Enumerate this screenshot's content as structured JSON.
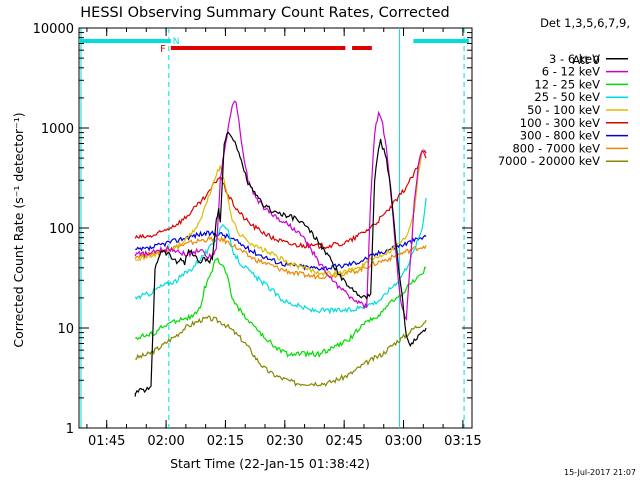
{
  "chart_data": {
    "type": "line",
    "title": "HESSI Observing Summary Count Rates, Corrected",
    "xlabel": "Start Time (22-Jan-15 01:38:42)",
    "ylabel": "Corrected Count Rate (s⁻¹ detector⁻¹)",
    "y_scale": "log",
    "ylim": [
      1,
      10000
    ],
    "x_unit": "minutes after 01:38:42",
    "xlim": [
      -0.7,
      98.6
    ],
    "x_ticks": [
      {
        "label": "01:45",
        "value": 6.3
      },
      {
        "label": "02:00",
        "value": 21.3
      },
      {
        "label": "02:15",
        "value": 36.3
      },
      {
        "label": "02:30",
        "value": 51.3
      },
      {
        "label": "02:45",
        "value": 66.3
      },
      {
        "label": "03:00",
        "value": 81.3
      },
      {
        "label": "03:15",
        "value": 96.3
      }
    ],
    "y_ticks": [
      {
        "label": "1",
        "value": 1
      },
      {
        "label": "10",
        "value": 10
      },
      {
        "label": "100",
        "value": 100
      },
      {
        "label": "1000",
        "value": 1000
      },
      {
        "label": "10000",
        "value": 10000
      }
    ],
    "legend_header": [
      "Det 1,3,5,6,7,9,",
      "Att 0"
    ],
    "legend_position": "right",
    "series": [
      {
        "name": "3 - 6 keV",
        "color": "#000000",
        "x": [
          13.5,
          13.6,
          17.5,
          18.5,
          20,
          22,
          24,
          25,
          26,
          27,
          28,
          29,
          30,
          31,
          32,
          33,
          34,
          34.6,
          35,
          36,
          37,
          38,
          39,
          40,
          41,
          42,
          44,
          46,
          48,
          50,
          52,
          54,
          56,
          58,
          60,
          62,
          64,
          66,
          68,
          70,
          72,
          73,
          74,
          75,
          75.5,
          76,
          77,
          78,
          79,
          80,
          81,
          82,
          83,
          84,
          85,
          86,
          87
        ],
        "y": [
          2,
          2.3,
          2.5,
          40,
          60,
          55,
          45,
          50,
          45,
          60,
          55,
          50,
          45,
          50,
          45,
          50,
          120,
          160,
          110,
          700,
          950,
          800,
          650,
          500,
          380,
          280,
          210,
          170,
          150,
          140,
          130,
          125,
          110,
          90,
          70,
          55,
          40,
          30,
          25,
          22,
          20,
          22,
          300,
          650,
          750,
          650,
          500,
          250,
          100,
          40,
          20,
          8,
          7,
          7.5,
          8.5,
          9,
          10
        ]
      },
      {
        "name": "6 - 12 keV",
        "color": "#cc00cc",
        "x": [
          13.5,
          17.5,
          18.5,
          20,
          22,
          24,
          26,
          28,
          29,
          30,
          31,
          32,
          33,
          34,
          34.6,
          35,
          36,
          37,
          38,
          39,
          40,
          41,
          42,
          44,
          46,
          48,
          50,
          52,
          54,
          56,
          58,
          60,
          62,
          64,
          66,
          68,
          70,
          72,
          73,
          74,
          75,
          76,
          77,
          78,
          79,
          80,
          81,
          82,
          83,
          84,
          85,
          86,
          87
        ],
        "y": [
          55,
          55,
          58,
          60,
          62,
          60,
          55,
          55,
          60,
          60,
          55,
          50,
          55,
          60,
          160,
          300,
          600,
          1000,
          1600,
          1900,
          900,
          500,
          300,
          200,
          160,
          140,
          120,
          110,
          95,
          80,
          60,
          45,
          35,
          28,
          24,
          20,
          18,
          16,
          200,
          900,
          1400,
          1100,
          600,
          250,
          90,
          30,
          15,
          12,
          45,
          180,
          400,
          600,
          560
        ]
      },
      {
        "name": "12 - 25 keV",
        "color": "#00dd00",
        "x": [
          13.5,
          17,
          18.5,
          20,
          22,
          24,
          26,
          28,
          29,
          30,
          31,
          32,
          33,
          34,
          35,
          36,
          37,
          38,
          40,
          42,
          44,
          46,
          48,
          50,
          52,
          54,
          56,
          58,
          60,
          62,
          64,
          66,
          68,
          70,
          72,
          74,
          76,
          78,
          80,
          82,
          84,
          86,
          87
        ],
        "y": [
          8,
          8.5,
          9,
          10,
          11,
          12,
          12.5,
          13,
          14,
          16,
          25,
          30,
          38,
          50,
          45,
          40,
          30,
          20,
          15,
          12,
          10,
          8,
          7,
          6,
          5.5,
          5.5,
          5.5,
          5.5,
          5.5,
          6,
          6.5,
          7,
          8,
          10,
          12,
          12,
          15,
          18,
          20,
          25,
          30,
          35,
          40
        ]
      },
      {
        "name": "25 - 50 keV",
        "color": "#00dddd",
        "x": [
          13.5,
          17,
          18.5,
          20,
          22,
          24,
          26,
          28,
          30,
          32,
          34,
          35,
          36,
          37,
          38,
          40,
          42,
          44,
          46,
          48,
          50,
          52,
          54,
          56,
          58,
          60,
          62,
          64,
          66,
          68,
          70,
          72,
          74,
          76,
          78,
          80,
          82,
          84,
          86,
          87
        ],
        "y": [
          20,
          22,
          24,
          26,
          28,
          30,
          35,
          40,
          50,
          60,
          80,
          100,
          110,
          90,
          60,
          45,
          38,
          32,
          28,
          24,
          20,
          18,
          17,
          16,
          15,
          15,
          15,
          15,
          15,
          15,
          16,
          17,
          18,
          20,
          25,
          30,
          40,
          60,
          100,
          200
        ]
      },
      {
        "name": "50 - 100 keV",
        "color": "#ddbb00",
        "x": [
          13.5,
          17,
          18.5,
          20,
          22,
          24,
          26,
          28,
          30,
          32,
          34,
          35,
          36,
          37,
          38,
          40,
          42,
          44,
          46,
          48,
          50,
          52,
          54,
          56,
          58,
          60,
          62,
          64,
          66,
          68,
          70,
          72,
          74,
          76,
          78,
          80,
          82,
          84,
          85,
          86,
          87
        ],
        "y": [
          50,
          52,
          55,
          58,
          60,
          65,
          75,
          90,
          120,
          200,
          350,
          400,
          300,
          200,
          120,
          85,
          75,
          65,
          60,
          55,
          50,
          45,
          42,
          40,
          38,
          36,
          35,
          35,
          36,
          38,
          40,
          45,
          50,
          55,
          60,
          70,
          80,
          150,
          350,
          600,
          550
        ]
      },
      {
        "name": "100 - 300 keV",
        "color": "#dd0000",
        "x": [
          13.5,
          17,
          18.5,
          20,
          22,
          24,
          26,
          28,
          30,
          32,
          33,
          34,
          35,
          36,
          38,
          40,
          42,
          44,
          46,
          48,
          50,
          52,
          54,
          56,
          58,
          60,
          62,
          64,
          66,
          68,
          70,
          72,
          74,
          76,
          78,
          80,
          82,
          84,
          85,
          86,
          87
        ],
        "y": [
          80,
          82,
          85,
          90,
          100,
          110,
          125,
          150,
          180,
          220,
          260,
          300,
          330,
          260,
          180,
          140,
          115,
          100,
          90,
          80,
          75,
          70,
          68,
          67,
          66,
          66,
          66,
          68,
          70,
          75,
          85,
          95,
          110,
          130,
          160,
          200,
          260,
          350,
          420,
          600,
          500
        ]
      },
      {
        "name": "300 - 800 keV",
        "color": "#0000dd",
        "x": [
          13.5,
          17,
          18.5,
          20,
          22,
          24,
          26,
          28,
          30,
          32,
          34,
          35,
          36,
          38,
          40,
          42,
          44,
          46,
          48,
          50,
          52,
          54,
          56,
          58,
          60,
          62,
          64,
          66,
          68,
          70,
          72,
          74,
          76,
          78,
          80,
          82,
          84,
          86,
          87
        ],
        "y": [
          60,
          62,
          65,
          68,
          72,
          75,
          80,
          83,
          87,
          88,
          88,
          87,
          85,
          78,
          70,
          62,
          56,
          52,
          48,
          45,
          43,
          42,
          41,
          40,
          40,
          40,
          41,
          42,
          44,
          46,
          50,
          54,
          58,
          62,
          66,
          70,
          75,
          80,
          82
        ]
      },
      {
        "name": "800 - 7000 keV",
        "color": "#ee8800",
        "x": [
          13.5,
          17,
          18.5,
          20,
          22,
          24,
          26,
          28,
          30,
          32,
          34,
          35,
          36,
          38,
          40,
          42,
          44,
          46,
          48,
          50,
          52,
          54,
          56,
          58,
          60,
          62,
          64,
          66,
          68,
          70,
          72,
          74,
          76,
          78,
          80,
          82,
          84,
          86,
          87
        ],
        "y": [
          52,
          54,
          56,
          58,
          62,
          65,
          68,
          72,
          75,
          77,
          78,
          77,
          75,
          68,
          60,
          53,
          48,
          45,
          42,
          39,
          37,
          35,
          34,
          33,
          33,
          33,
          34,
          35,
          36,
          38,
          41,
          44,
          47,
          50,
          54,
          58,
          62,
          65,
          67
        ]
      },
      {
        "name": "7000 - 20000 keV",
        "color": "#888800",
        "x": [
          13.5,
          17,
          18.5,
          20,
          22,
          24,
          26,
          28,
          30,
          32,
          34,
          36,
          38,
          40,
          42,
          44,
          46,
          48,
          50,
          52,
          54,
          56,
          58,
          60,
          62,
          64,
          66,
          68,
          70,
          72,
          74,
          76,
          78,
          80,
          82,
          84,
          86,
          87
        ],
        "y": [
          5,
          5.5,
          6,
          6.5,
          7.5,
          8.5,
          10,
          11,
          12,
          12.5,
          12,
          11,
          9.5,
          8,
          6.5,
          5,
          4,
          3.5,
          3.2,
          3,
          2.8,
          2.8,
          2.8,
          2.8,
          2.8,
          3,
          3.2,
          3.5,
          4,
          4.5,
          5,
          5.5,
          6.5,
          7.5,
          8.5,
          10,
          11,
          12
        ]
      }
    ],
    "annotations": {
      "flag_letters": [
        "F",
        "N"
      ],
      "red_segments": [
        [
          22.5,
          66.6
        ],
        [
          68.3,
          73.3
        ]
      ],
      "cyan_segments": [
        [
          -0.7,
          22.5
        ],
        [
          83.8,
          97.8
        ]
      ],
      "vertical_lines_solid": [
        -0.2,
        80.3
      ],
      "vertical_lines_dashed": [
        22.0,
        96.6
      ]
    }
  },
  "timestamp": "15-Jul-2017 21:07"
}
